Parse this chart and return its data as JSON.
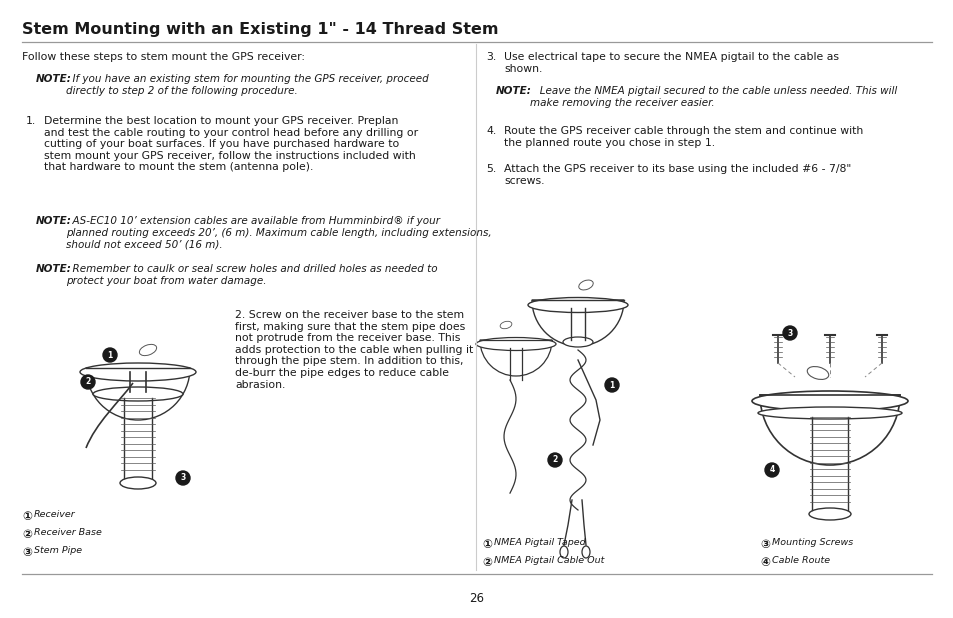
{
  "bg_color": "#ffffff",
  "title": "Stem Mounting with an Existing 1\" - 14 Thread Stem",
  "title_color": "#1a1a1a",
  "page_number": "26",
  "line_color": "#999999",
  "text_color": "#1a1a1a",
  "note_bold_color": "#1a1a1a",
  "figsize": [
    9.54,
    6.18
  ],
  "dpi": 100,
  "para_intro": "Follow these steps to stem mount the GPS receiver:",
  "note1_bold": "NOTE:",
  "note1_rest": "  If you have an existing stem for mounting the GPS receiver, proceed\ndirectly to step 2 of the following procedure.",
  "step1_num": "1.",
  "step1_body": "Determine the best location to mount your GPS receiver. Preplan\nand test the cable routing to your control head before any drilling or\ncutting of your boat surfaces. If you have purchased hardware to\nstem mount your GPS receiver, follow the instructions included with\nthat hardware to mount the stem (antenna pole).",
  "note2_bold": "NOTE:",
  "note2_rest": "  AS-EC10 10’ extension cables are available from Humminbird® if your\nplanned routing exceeds 20’, (6 m). Maximum cable length, including extensions,\nshould not exceed 50’ (16 m).",
  "note3_bold": "NOTE:",
  "note3_rest": "  Remember to caulk or seal screw holes and drilled holes as needed to\nprotect your boat from water damage.",
  "step2_text": "2. Screw on the receiver base to the stem\nfirst, making sure that the stem pipe does\nnot protrude from the receiver base. This\nadds protection to the cable when pulling it\nthrough the pipe stem. In addition to this,\nde-burr the pipe edges to reduce cable\nabrasion.",
  "step3_num": "3.",
  "step3_body": "Use electrical tape to secure the NMEA pigtail to the cable as\nshown.",
  "note4_bold": "NOTE:",
  "note4_rest": "   Leave the NMEA pigtail secured to the cable unless needed. This will\nmake removing the receiver easier.",
  "step4_num": "4.",
  "step4_body": "Route the GPS receiver cable through the stem and continue with\nthe planned route you chose in step 1.",
  "step5_num": "5.",
  "step5_body": "Attach the GPS receiver to its base using the included #6 - 7/8\"\nscrews.",
  "cap_l1": "Receiver",
  "cap_l2": "Receiver Base",
  "cap_l3": "Stem Pipe",
  "cap_m1": "NMEA Pigtail Taped",
  "cap_m2": "NMEA Pigtail Cable Out",
  "cap_r3": "Mounting Screws",
  "cap_r4": "Cable Route",
  "font_title": 11.5,
  "font_body": 7.8,
  "font_note": 7.5,
  "font_caption": 6.8,
  "font_page": 8.5
}
